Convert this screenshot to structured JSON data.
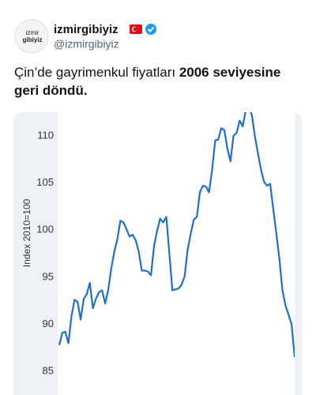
{
  "account": {
    "avatar_text": [
      "izmir",
      "gibiyiz"
    ],
    "name": "izmirgibiyiz",
    "handle": "@izmirgibiyiz"
  },
  "tweet": {
    "text_parts": [
      {
        "text": "Çin’de gayrimenkul fiyatları ",
        "bold": false
      },
      {
        "text": "2006 seviyesine geri döndü.",
        "bold": true
      }
    ]
  },
  "chart_data": {
    "type": "line",
    "y_label": "Index 2010=100",
    "color": "#1f6fd1",
    "grid": false,
    "ylim": [
      82.5,
      112.5
    ],
    "yticks": [
      85,
      90,
      95,
      100,
      105,
      110
    ],
    "values": [
      87.8,
      89.1,
      89.2,
      88.0,
      90.9,
      92.6,
      92.4,
      90.5,
      92.7,
      93.2,
      94.4,
      91.7,
      92.7,
      93.4,
      93.6,
      92.2,
      93.6,
      95.9,
      97.7,
      99.0,
      101.0,
      100.8,
      100.1,
      99.3,
      99.5,
      98.9,
      97.7,
      95.7,
      95.7,
      95.6,
      95.2,
      98.3,
      99.9,
      101.2,
      100.8,
      101.4,
      97.6,
      93.6,
      93.7,
      93.8,
      94.2,
      95.1,
      97.9,
      99.6,
      101.1,
      101.4,
      104.0,
      104.7,
      104.6,
      104.0,
      106.4,
      109.5,
      109.6,
      110.8,
      110.6,
      108.6,
      107.3,
      110.0,
      110.3,
      111.6,
      111.0,
      112.7,
      113.1,
      112.2,
      109.9,
      108.1,
      106.4,
      105.1,
      104.7,
      104.9,
      102.2,
      99.6,
      97.0,
      93.6,
      92.0,
      91.0,
      90.0,
      86.5
    ]
  }
}
